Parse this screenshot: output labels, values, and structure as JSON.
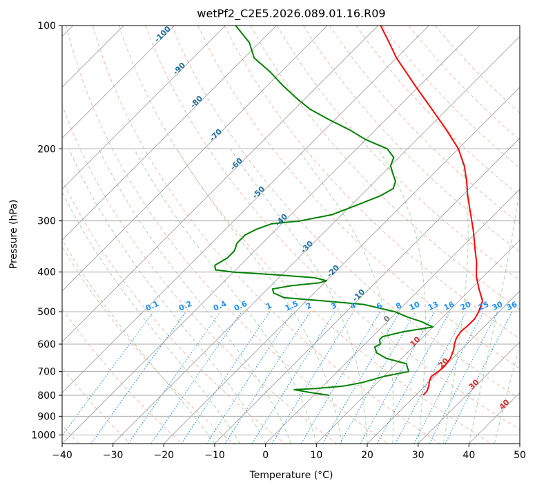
{
  "chart_data": {
    "type": "line",
    "diagram": "skew-t",
    "title": "wetPf2_C2E5.2026.089.01.16.R09",
    "xlabel": "Temperature (°C)",
    "ylabel": "Pressure (hPa)",
    "xlim": [
      -40,
      50
    ],
    "ylim": [
      1050,
      100
    ],
    "y_scale": "log",
    "grid": true,
    "x_ticks": [
      -40,
      -30,
      -20,
      -10,
      0,
      10,
      20,
      30,
      40,
      50
    ],
    "x_tick_labels": [
      "−40",
      "−30",
      "−20",
      "−10",
      "0",
      "10",
      "20",
      "30",
      "40",
      "50"
    ],
    "y_ticks": [
      100,
      200,
      300,
      400,
      500,
      600,
      700,
      800,
      900,
      1000
    ],
    "y_tick_labels": [
      "100",
      "200",
      "300",
      "400",
      "500",
      "600",
      "700",
      "800",
      "900",
      "1000"
    ],
    "series": [
      {
        "color": "#ff0000",
        "pressure": [
          800,
          780,
          760,
          740,
          720,
          700,
          680,
          650,
          620,
          600,
          580,
          560,
          540,
          520,
          500,
          470,
          440,
          410,
          380,
          350,
          320,
          300,
          280,
          260,
          240,
          220,
          200,
          180,
          160,
          140,
          120,
          110,
          100
        ],
        "temperature": [
          21.5,
          21.4,
          20.8,
          20.0,
          19.4,
          19.8,
          20.0,
          19.6,
          18.6,
          17.6,
          16.8,
          16.4,
          16.6,
          16.6,
          16.0,
          14.6,
          11.6,
          8.6,
          6.0,
          2.8,
          -0.6,
          -3.2,
          -6.0,
          -9.0,
          -12.0,
          -15.5,
          -20.0,
          -26.0,
          -33.0,
          -41.0,
          -50.0,
          -54.5,
          -59.5
        ]
      },
      {
        "color": "#008000",
        "pressure": [
          800,
          790,
          780,
          775,
          770,
          760,
          745,
          720,
          700,
          685,
          670,
          650,
          630,
          610,
          600,
          585,
          575,
          560,
          545,
          530,
          515,
          500,
          480,
          470,
          462,
          450,
          440,
          432,
          425,
          420,
          413,
          407,
          400,
          395,
          385,
          370,
          355,
          340,
          325,
          315,
          305,
          300,
          290,
          280,
          270,
          260,
          250,
          240,
          230,
          220,
          210,
          200,
          190,
          180,
          170,
          160,
          150,
          140,
          130,
          120,
          110,
          100
        ],
        "temperature": [
          3.0,
          -0.5,
          -3.5,
          -5.0,
          -1.0,
          4.0,
          7.0,
          10.0,
          14.0,
          13.0,
          12.0,
          7.0,
          4.0,
          2.5,
          3.0,
          2.0,
          2.0,
          5.0,
          10.0,
          7.0,
          3.0,
          -0.5,
          -8.0,
          -17.0,
          -25.0,
          -28.0,
          -29.0,
          -26.0,
          -21.0,
          -20.0,
          -23.0,
          -30.0,
          -40.0,
          -44.0,
          -45.0,
          -44.0,
          -44.0,
          -45.0,
          -45.0,
          -44.0,
          -42.0,
          -37.0,
          -32.0,
          -30.0,
          -28.0,
          -26.0,
          -25.0,
          -26.0,
          -28.0,
          -30.0,
          -31.0,
          -34.0,
          -40.0,
          -45.0,
          -51.0,
          -57.0,
          -62.0,
          -67.0,
          -72.0,
          -78.0,
          -82.0,
          -88.0
        ]
      }
    ],
    "contour_labels": {
      "dry_adiabats_C": [
        "-100",
        "-90",
        "-80",
        "-70",
        "-60",
        "-50",
        "-40",
        "-30",
        "-20",
        "-10"
      ],
      "moist_adiabats_C": [
        "0",
        "10",
        "20",
        "30",
        "40"
      ],
      "mixing_ratio_g_kg": [
        "0.1",
        "0.2",
        "0.4",
        "0.6",
        "1",
        "1.5",
        "2",
        "3",
        "4",
        "6",
        "8",
        "10",
        "13",
        "16",
        "20",
        "25",
        "30",
        "36"
      ]
    },
    "colors": {
      "temperature": "#ff0000",
      "dewpoint": "#008000",
      "dry_adiabat": "#f4b8a6",
      "moist_adiabat": "#a8d4a8",
      "mixing_ratio": "#1e90ff",
      "skewed_isotherm": "#999999",
      "grid": "#aaaaaa",
      "dry_label": "#1f6fa0",
      "moist_label": "#d62728"
    }
  }
}
